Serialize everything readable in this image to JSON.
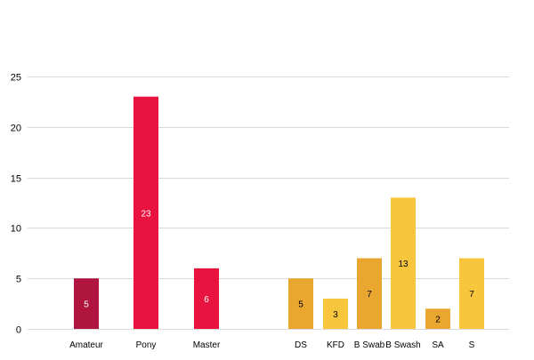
{
  "chart_data": {
    "type": "bar",
    "title": "",
    "xlabel": "",
    "ylabel": "",
    "ylim": [
      0,
      25
    ],
    "y_ticks": [
      0,
      5,
      10,
      15,
      20,
      25
    ],
    "grid": true,
    "legend": "none",
    "groups": [
      {
        "bars": [
          {
            "label": "Amateur",
            "value": 5,
            "color": "#b0153f",
            "label_color": "#ffffff"
          },
          {
            "label": "Pony",
            "value": 23,
            "color": "#e8133f",
            "label_color": "#ffffff"
          },
          {
            "label": "Master",
            "value": 6,
            "color": "#e8133f",
            "label_color": "#ffffff"
          }
        ]
      },
      {
        "bars": [
          {
            "label": "DS",
            "value": 5,
            "color": "#eaa730",
            "label_color": "#000000"
          },
          {
            "label": "KFD",
            "value": 3,
            "color": "#f7c63c",
            "label_color": "#000000"
          },
          {
            "label": "B Swab",
            "value": 7,
            "color": "#eaa730",
            "label_color": "#000000"
          },
          {
            "label": "B Swash",
            "value": 13,
            "color": "#f7c63c",
            "label_color": "#000000"
          },
          {
            "label": "SA",
            "value": 2,
            "color": "#eaa730",
            "label_color": "#000000"
          },
          {
            "label": "S",
            "value": 7,
            "color": "#f7c63c",
            "label_color": "#000000"
          }
        ]
      }
    ],
    "colors": {
      "gridline": "#d9d9d9",
      "axis_text": "#000000"
    }
  }
}
